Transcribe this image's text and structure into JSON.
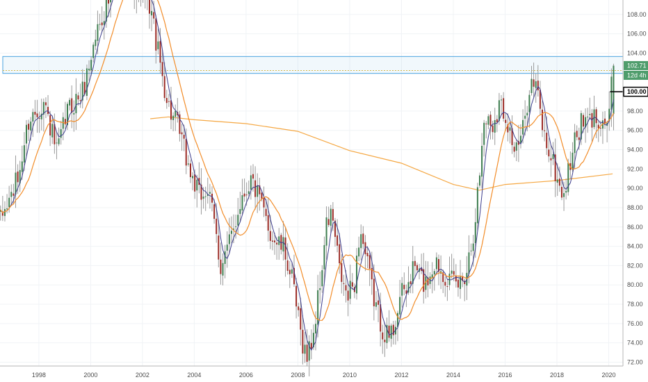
{
  "chart_data": {
    "type": "candlestick",
    "xlabel": "",
    "ylabel": "",
    "x_range": [
      1996.5,
      2020.55
    ],
    "y_range": [
      71.6,
      109.5
    ],
    "x_ticks": [
      {
        "year": 1998,
        "label": "1998"
      },
      {
        "year": 2000,
        "label": "2000"
      },
      {
        "year": 2002,
        "label": "2002"
      },
      {
        "year": 2004,
        "label": "2004"
      },
      {
        "year": 2006,
        "label": "2006"
      },
      {
        "year": 2008,
        "label": "2008"
      },
      {
        "year": 2010,
        "label": "2010"
      },
      {
        "year": 2012,
        "label": "2012"
      },
      {
        "year": 2014,
        "label": "2014"
      },
      {
        "year": 2016,
        "label": "2016"
      },
      {
        "year": 2018,
        "label": "2018"
      },
      {
        "year": 2020,
        "label": "2020"
      }
    ],
    "y_ticks": [
      {
        "value": 108,
        "label": "108.00"
      },
      {
        "value": 106,
        "label": "106.00"
      },
      {
        "value": 104,
        "label": "104.00"
      },
      {
        "value": 98,
        "label": "98.00"
      },
      {
        "value": 96,
        "label": "96.00"
      },
      {
        "value": 94,
        "label": "94.00"
      },
      {
        "value": 92,
        "label": "92.00"
      },
      {
        "value": 90,
        "label": "90.00"
      },
      {
        "value": 88,
        "label": "88.00"
      },
      {
        "value": 86,
        "label": "86.00"
      },
      {
        "value": 84,
        "label": "84.00"
      },
      {
        "value": 82,
        "label": "82.00"
      },
      {
        "value": 80,
        "label": "80.00"
      },
      {
        "value": 78,
        "label": "78.00"
      },
      {
        "value": 76,
        "label": "76.00"
      },
      {
        "value": 74,
        "label": "74.00"
      },
      {
        "value": 72,
        "label": "72.00"
      }
    ],
    "price_key_points": [
      [
        1996.5,
        86.5
      ],
      [
        1997.2,
        91
      ],
      [
        1997.6,
        97
      ],
      [
        1998.2,
        99
      ],
      [
        1998.7,
        93.5
      ],
      [
        1999.1,
        98
      ],
      [
        1999.7,
        100
      ],
      [
        2000.3,
        107
      ],
      [
        2000.8,
        110
      ],
      [
        2001.2,
        113
      ],
      [
        2001.7,
        111
      ],
      [
        2002.3,
        109
      ],
      [
        2002.6,
        104
      ],
      [
        2003.0,
        98.5
      ],
      [
        2003.4,
        96
      ],
      [
        2003.8,
        92
      ],
      [
        2004.2,
        89
      ],
      [
        2004.5,
        90
      ],
      [
        2004.8,
        86
      ],
      [
        2005.0,
        82
      ],
      [
        2005.4,
        84.5
      ],
      [
        2005.8,
        89
      ],
      [
        2006.2,
        91
      ],
      [
        2006.6,
        88
      ],
      [
        2007.0,
        85
      ],
      [
        2007.5,
        83.5
      ],
      [
        2007.8,
        80
      ],
      [
        2008.1,
        75
      ],
      [
        2008.35,
        72.5
      ],
      [
        2008.6,
        75
      ],
      [
        2008.85,
        80
      ],
      [
        2009.1,
        86
      ],
      [
        2009.3,
        87.5
      ],
      [
        2009.6,
        81.5
      ],
      [
        2009.9,
        78.5
      ],
      [
        2010.2,
        80.5
      ],
      [
        2010.4,
        86
      ],
      [
        2010.6,
        83
      ],
      [
        2010.9,
        79
      ],
      [
        2011.2,
        76
      ],
      [
        2011.5,
        74.5
      ],
      [
        2011.7,
        75.5
      ],
      [
        2011.9,
        78.5
      ],
      [
        2012.2,
        79.5
      ],
      [
        2012.5,
        82
      ],
      [
        2012.9,
        80
      ],
      [
        2013.3,
        82.5
      ],
      [
        2013.6,
        81.5
      ],
      [
        2013.9,
        80.3
      ],
      [
        2014.2,
        80
      ],
      [
        2014.5,
        81.5
      ],
      [
        2014.8,
        86
      ],
      [
        2015.0,
        91
      ],
      [
        2015.2,
        97.5
      ],
      [
        2015.5,
        96.5
      ],
      [
        2015.8,
        99
      ],
      [
        2016.1,
        97
      ],
      [
        2016.4,
        93.5
      ],
      [
        2016.7,
        96
      ],
      [
        2016.95,
        101
      ],
      [
        2017.2,
        100.5
      ],
      [
        2017.5,
        95.5
      ],
      [
        2017.8,
        93
      ],
      [
        2018.1,
        90
      ],
      [
        2018.3,
        89.5
      ],
      [
        2018.6,
        94
      ],
      [
        2018.9,
        96.5
      ],
      [
        2019.3,
        97
      ],
      [
        2019.6,
        97.5
      ],
      [
        2019.9,
        96.7
      ],
      [
        2020.05,
        98.5
      ],
      [
        2020.15,
        102.4
      ]
    ],
    "series": [
      {
        "name": "",
        "kind": "ma_short",
        "color": "#3c3c8c"
      },
      {
        "name": "",
        "kind": "ma_medium",
        "color": "#f28c28"
      },
      {
        "name": "",
        "kind": "ma_long",
        "color": "#f5a742",
        "points": [
          [
            2002.3,
            97.2
          ],
          [
            2003.0,
            97.4
          ],
          [
            2004.0,
            97.1
          ],
          [
            2006.0,
            96.7
          ],
          [
            2008.0,
            95.9
          ],
          [
            2010.0,
            93.9
          ],
          [
            2012.0,
            92.6
          ],
          [
            2014.0,
            90.4
          ],
          [
            2015.0,
            89.8
          ],
          [
            2016.0,
            90.4
          ],
          [
            2018.0,
            90.8
          ],
          [
            2020.15,
            91.5
          ]
        ]
      }
    ],
    "colors": {
      "up": "#3d7d4f",
      "down": "#9b2a24",
      "wick": "#999999"
    },
    "resistance_zone": {
      "y_low": 101.9,
      "y_high": 103.65,
      "x_start": 1996.5,
      "color": "#4aa3df"
    },
    "dotted_line_level": 102.2,
    "price_tags": [
      {
        "value": 102.71,
        "label": "102.71",
        "color": "#4f9d6c"
      },
      {
        "value": 101.7,
        "label": "12d 4h",
        "color": "#4f9d6c"
      },
      {
        "value": 100.0,
        "label": "100.00",
        "color": "#000000"
      }
    ],
    "horizontal_marker": {
      "value": 100.0,
      "x_start": 2020.05
    }
  }
}
